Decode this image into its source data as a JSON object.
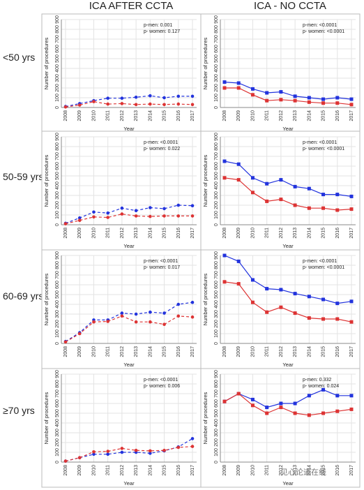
{
  "column_titles": [
    "ICA AFTER CCTA",
    "ICA - NO CCTA"
  ],
  "row_labels": [
    "<50 yrs",
    "50-59 yrs",
    "60-69 yrs",
    "≥70 yrs"
  ],
  "watermark": "见心论道在线",
  "colors": {
    "men": "#2233dd",
    "women": "#dd3333",
    "grid": "#e3e3e3",
    "frame": "#bbbbbb"
  },
  "chart_data": [
    {
      "type": "line",
      "title": "",
      "row": "<50 yrs",
      "column": "ICA AFTER CCTA",
      "x": [
        2008,
        2009,
        2010,
        2011,
        2012,
        2013,
        2014,
        2015,
        2016,
        2017
      ],
      "xlabel": "Year",
      "ylabel": "Number of procedures",
      "ylim": [
        0,
        900
      ],
      "yticks": [
        0,
        100,
        200,
        300,
        400,
        500,
        600,
        700,
        800,
        900
      ],
      "grid": true,
      "line_style": "dashed",
      "annotations": [
        "p-men: 0.001",
        "p- women: 0.127"
      ],
      "series": [
        {
          "color": "#2233dd",
          "values": [
            10,
            40,
            70,
            95,
            95,
            105,
            120,
            100,
            115,
            115
          ]
        },
        {
          "color": "#dd3333",
          "values": [
            5,
            25,
            60,
            35,
            40,
            30,
            35,
            30,
            35,
            30
          ]
        }
      ]
    },
    {
      "type": "line",
      "title": "",
      "row": "<50 yrs",
      "column": "ICA - NO CCTA",
      "x": [
        2008,
        2009,
        2010,
        2011,
        2012,
        2013,
        2014,
        2015,
        2016,
        2017
      ],
      "xlabel": "Year",
      "ylabel": "Number of procedures",
      "ylim": [
        0,
        900
      ],
      "yticks": [
        0,
        100,
        200,
        300,
        400,
        500,
        600,
        700,
        800,
        900
      ],
      "grid": true,
      "line_style": "solid",
      "annotations": [
        "p-men: <0.0001",
        "p- women: <0.0001"
      ],
      "series": [
        {
          "color": "#2233dd",
          "values": [
            260,
            250,
            190,
            150,
            160,
            115,
            100,
            85,
            100,
            85
          ]
        },
        {
          "color": "#dd3333",
          "values": [
            200,
            200,
            130,
            70,
            80,
            70,
            55,
            45,
            45,
            30
          ]
        }
      ]
    },
    {
      "type": "line",
      "title": "",
      "row": "50-59 yrs",
      "column": "ICA AFTER CCTA",
      "x": [
        2008,
        2009,
        2010,
        2011,
        2012,
        2013,
        2014,
        2015,
        2016,
        2017
      ],
      "xlabel": "Year",
      "ylabel": "Number of procedures",
      "ylim": [
        0,
        900
      ],
      "yticks": [
        0,
        100,
        200,
        300,
        400,
        500,
        600,
        700,
        800,
        900
      ],
      "grid": true,
      "line_style": "dashed",
      "annotations": [
        "p-men: <0.0001",
        "p- women: 0.022"
      ],
      "series": [
        {
          "color": "#2233dd",
          "values": [
            15,
            70,
            130,
            120,
            170,
            145,
            175,
            165,
            200,
            195
          ]
        },
        {
          "color": "#dd3333",
          "values": [
            10,
            45,
            80,
            75,
            110,
            90,
            85,
            90,
            90,
            90
          ]
        }
      ]
    },
    {
      "type": "line",
      "title": "",
      "row": "50-59 yrs",
      "column": "ICA - NO CCTA",
      "x": [
        2008,
        2009,
        2010,
        2011,
        2012,
        2013,
        2014,
        2015,
        2016,
        2017
      ],
      "xlabel": "Year",
      "ylabel": "Number of procedures",
      "ylim": [
        0,
        900
      ],
      "yticks": [
        0,
        100,
        200,
        300,
        400,
        500,
        600,
        700,
        800,
        900
      ],
      "grid": true,
      "line_style": "solid",
      "annotations": [
        "p-men: <0.0001",
        "p- women: <0.0001"
      ],
      "series": [
        {
          "color": "#2233dd",
          "values": [
            650,
            620,
            480,
            420,
            460,
            390,
            370,
            310,
            310,
            290
          ]
        },
        {
          "color": "#dd3333",
          "values": [
            480,
            460,
            330,
            240,
            260,
            200,
            170,
            170,
            150,
            160
          ]
        }
      ]
    },
    {
      "type": "line",
      "title": "",
      "row": "60-69 yrs",
      "column": "ICA AFTER CCTA",
      "x": [
        2008,
        2009,
        2010,
        2011,
        2012,
        2013,
        2014,
        2015,
        2016,
        2017
      ],
      "xlabel": "Year",
      "ylabel": "Number of procedures",
      "ylim": [
        0,
        900
      ],
      "yticks": [
        0,
        100,
        200,
        300,
        400,
        500,
        600,
        700,
        800,
        900
      ],
      "grid": true,
      "line_style": "dashed",
      "annotations": [
        "p-men: <0.0001",
        "p- women: 0.017"
      ],
      "series": [
        {
          "color": "#2233dd",
          "values": [
            20,
            110,
            240,
            240,
            310,
            300,
            320,
            310,
            400,
            420
          ]
        },
        {
          "color": "#dd3333",
          "values": [
            15,
            100,
            220,
            225,
            280,
            220,
            220,
            195,
            280,
            270
          ]
        }
      ]
    },
    {
      "type": "line",
      "title": "",
      "row": "60-69 yrs",
      "column": "ICA - NO CCTA",
      "x": [
        2008,
        2009,
        2010,
        2011,
        2012,
        2013,
        2014,
        2015,
        2016,
        2017
      ],
      "xlabel": "Year",
      "ylabel": "Number of procedures",
      "ylim": [
        0,
        900
      ],
      "yticks": [
        0,
        100,
        200,
        300,
        400,
        500,
        600,
        700,
        800,
        900
      ],
      "grid": true,
      "line_style": "solid",
      "annotations": [
        "p-men: <0.0001",
        "p- women: <0.0001"
      ],
      "series": [
        {
          "color": "#2233dd",
          "values": [
            900,
            840,
            650,
            560,
            550,
            510,
            480,
            450,
            410,
            430
          ]
        },
        {
          "color": "#dd3333",
          "values": [
            630,
            610,
            420,
            320,
            370,
            310,
            260,
            250,
            250,
            220
          ]
        }
      ]
    },
    {
      "type": "line",
      "title": "",
      "row": "≥70 yrs",
      "column": "ICA AFTER CCTA",
      "x": [
        2008,
        2009,
        2010,
        2011,
        2012,
        2013,
        2014,
        2015,
        2016,
        2017
      ],
      "xlabel": "Year",
      "ylabel": "Number of procedures",
      "ylim": [
        0,
        900
      ],
      "yticks": [
        0,
        100,
        200,
        300,
        400,
        500,
        600,
        700,
        800,
        900
      ],
      "grid": true,
      "line_style": "dashed",
      "annotations": [
        "p-men: <0.0001",
        "p- women: 0.006"
      ],
      "series": [
        {
          "color": "#2233dd",
          "values": [
            10,
            45,
            80,
            80,
            100,
            100,
            90,
            115,
            155,
            240
          ]
        },
        {
          "color": "#dd3333",
          "values": [
            10,
            45,
            105,
            110,
            140,
            120,
            115,
            120,
            150,
            160
          ]
        }
      ]
    },
    {
      "type": "line",
      "title": "",
      "row": "≥70 yrs",
      "column": "ICA - NO CCTA",
      "x": [
        2008,
        2009,
        2010,
        2011,
        2012,
        2013,
        2014,
        2015,
        2016,
        2017
      ],
      "xlabel": "Year",
      "ylabel": "Number of procedures",
      "ylim": [
        0,
        900
      ],
      "yticks": [
        0,
        100,
        200,
        300,
        400,
        500,
        600,
        700,
        800,
        900
      ],
      "grid": true,
      "line_style": "solid",
      "annotations": [
        "p-men: 0.332",
        "p- women: 0.024"
      ],
      "series": [
        {
          "color": "#2233dd",
          "values": [
            620,
            700,
            640,
            560,
            600,
            600,
            680,
            740,
            680,
            680
          ]
        },
        {
          "color": "#dd3333",
          "values": [
            620,
            700,
            580,
            500,
            560,
            500,
            480,
            500,
            520,
            540
          ]
        }
      ]
    }
  ]
}
